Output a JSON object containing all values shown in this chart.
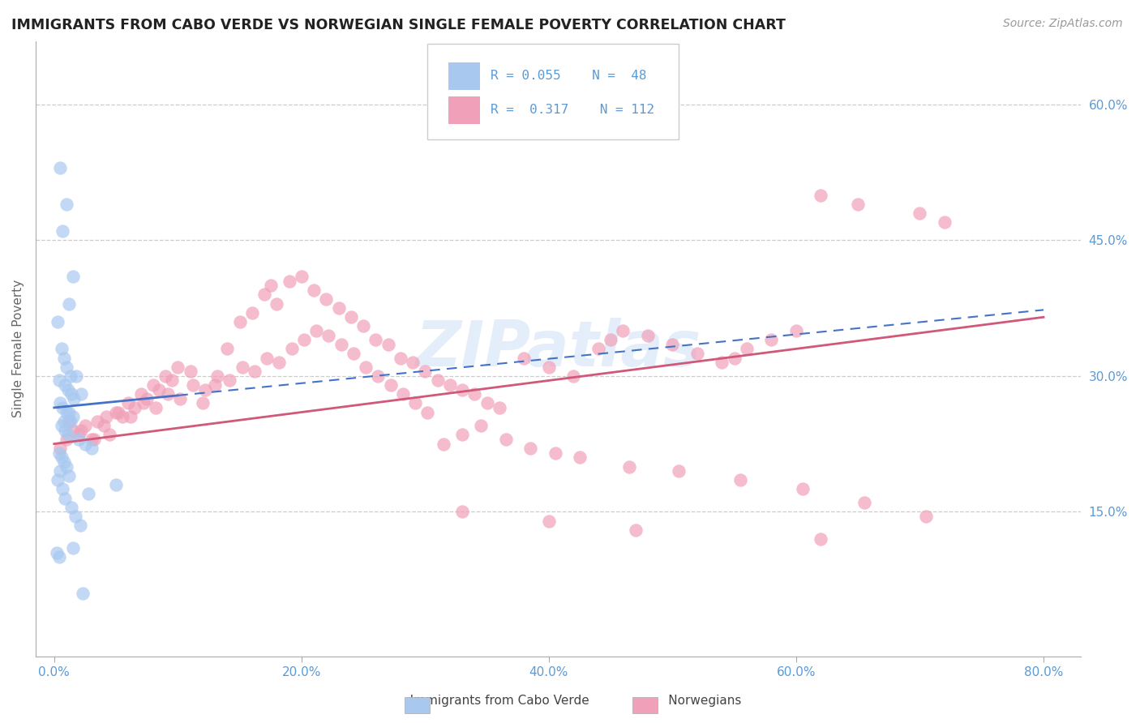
{
  "title": "IMMIGRANTS FROM CABO VERDE VS NORWEGIAN SINGLE FEMALE POVERTY CORRELATION CHART",
  "source_text": "Source: ZipAtlas.com",
  "ylabel": "Single Female Poverty",
  "ylabel_color": "#666666",
  "title_color": "#222222",
  "title_fontsize": 12.5,
  "x_tick_labels": [
    "0.0%",
    "20.0%",
    "40.0%",
    "60.0%",
    "80.0%"
  ],
  "x_tick_values": [
    0.0,
    20.0,
    40.0,
    60.0,
    80.0
  ],
  "y_tick_labels": [
    "60.0%",
    "45.0%",
    "30.0%",
    "15.0%"
  ],
  "y_tick_values": [
    60.0,
    45.0,
    30.0,
    15.0
  ],
  "xlim": [
    -1.5,
    83
  ],
  "ylim": [
    -1,
    67
  ],
  "tick_color": "#5b9bd5",
  "grid_color": "#cccccc",
  "watermark": "ZIPatlas",
  "legend_R1": "R = 0.055",
  "legend_N1": "N =  48",
  "legend_R2": "R =  0.317",
  "legend_N2": "N = 112",
  "series1_color": "#a8c8f0",
  "series2_color": "#f0a0b8",
  "trendline1_color": "#4472c4",
  "trendline2_color": "#d05878",
  "trendline1_solid_end": 10.0,
  "trendline1_m": 0.135,
  "trendline1_b": 26.5,
  "trendline2_m": 0.175,
  "trendline2_b": 22.5,
  "blue_scatter_x": [
    0.5,
    1.0,
    0.7,
    1.5,
    1.2,
    0.3,
    0.6,
    0.8,
    1.0,
    1.3,
    0.4,
    0.9,
    1.1,
    1.4,
    1.6,
    0.5,
    0.7,
    1.0,
    1.2,
    1.5,
    0.8,
    1.3,
    0.6,
    0.9,
    1.1,
    2.0,
    2.5,
    3.0,
    2.2,
    1.8,
    0.4,
    0.6,
    0.8,
    1.0,
    0.5,
    1.2,
    0.3,
    0.7,
    0.9,
    1.4,
    1.7,
    2.1,
    2.8,
    5.0,
    1.5,
    0.2,
    0.4,
    2.3
  ],
  "blue_scatter_y": [
    53.0,
    49.0,
    46.0,
    41.0,
    38.0,
    36.0,
    33.0,
    32.0,
    31.0,
    30.0,
    29.5,
    29.0,
    28.5,
    28.0,
    27.5,
    27.0,
    26.5,
    26.0,
    26.0,
    25.5,
    25.0,
    25.0,
    24.5,
    24.0,
    23.5,
    23.0,
    22.5,
    22.0,
    28.0,
    30.0,
    21.5,
    21.0,
    20.5,
    20.0,
    19.5,
    19.0,
    18.5,
    17.5,
    16.5,
    15.5,
    14.5,
    13.5,
    17.0,
    18.0,
    11.0,
    10.5,
    10.0,
    6.0
  ],
  "pink_scatter_x": [
    0.5,
    1.0,
    1.5,
    2.0,
    2.5,
    3.0,
    3.5,
    4.0,
    4.5,
    5.0,
    5.5,
    6.0,
    6.5,
    7.0,
    7.5,
    8.0,
    8.5,
    9.0,
    9.5,
    10.0,
    11.0,
    12.0,
    13.0,
    14.0,
    15.0,
    16.0,
    17.0,
    17.5,
    18.0,
    19.0,
    20.0,
    21.0,
    22.0,
    23.0,
    24.0,
    25.0,
    26.0,
    27.0,
    28.0,
    29.0,
    30.0,
    31.0,
    32.0,
    33.0,
    34.0,
    35.0,
    36.0,
    38.0,
    40.0,
    42.0,
    44.0,
    45.0,
    46.0,
    48.0,
    50.0,
    52.0,
    54.0,
    55.0,
    56.0,
    58.0,
    60.0,
    62.0,
    65.0,
    70.0,
    72.0,
    1.2,
    2.2,
    3.2,
    4.2,
    5.2,
    6.2,
    7.2,
    8.2,
    9.2,
    10.2,
    11.2,
    12.2,
    13.2,
    14.2,
    15.2,
    16.2,
    17.2,
    18.2,
    19.2,
    20.2,
    21.2,
    22.2,
    23.2,
    24.2,
    25.2,
    26.2,
    27.2,
    28.2,
    29.2,
    30.2,
    31.5,
    33.0,
    34.5,
    36.5,
    38.5,
    40.5,
    42.5,
    46.5,
    50.5,
    55.5,
    60.5,
    65.5,
    70.5,
    33.0,
    40.0,
    47.0,
    62.0
  ],
  "pink_scatter_y": [
    22.0,
    23.0,
    24.0,
    23.5,
    24.5,
    23.0,
    25.0,
    24.5,
    23.5,
    26.0,
    25.5,
    27.0,
    26.5,
    28.0,
    27.5,
    29.0,
    28.5,
    30.0,
    29.5,
    31.0,
    30.5,
    27.0,
    29.0,
    33.0,
    36.0,
    37.0,
    39.0,
    40.0,
    38.0,
    40.5,
    41.0,
    39.5,
    38.5,
    37.5,
    36.5,
    35.5,
    34.0,
    33.5,
    32.0,
    31.5,
    30.5,
    29.5,
    29.0,
    28.5,
    28.0,
    27.0,
    26.5,
    32.0,
    31.0,
    30.0,
    33.0,
    34.0,
    35.0,
    34.5,
    33.5,
    32.5,
    31.5,
    32.0,
    33.0,
    34.0,
    35.0,
    50.0,
    49.0,
    48.0,
    47.0,
    25.0,
    24.0,
    23.0,
    25.5,
    26.0,
    25.5,
    27.0,
    26.5,
    28.0,
    27.5,
    29.0,
    28.5,
    30.0,
    29.5,
    31.0,
    30.5,
    32.0,
    31.5,
    33.0,
    34.0,
    35.0,
    34.5,
    33.5,
    32.5,
    31.0,
    30.0,
    29.0,
    28.0,
    27.0,
    26.0,
    22.5,
    23.5,
    24.5,
    23.0,
    22.0,
    21.5,
    21.0,
    20.0,
    19.5,
    18.5,
    17.5,
    16.0,
    14.5,
    15.0,
    14.0,
    13.0,
    12.0
  ]
}
